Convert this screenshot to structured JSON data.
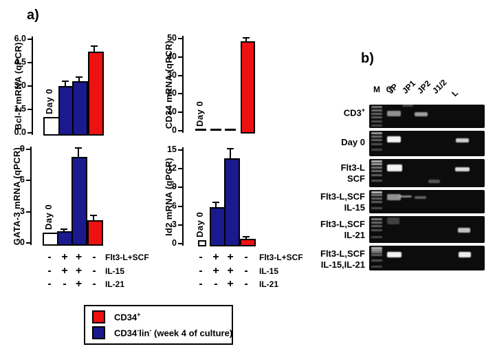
{
  "panel_a_label": "a)",
  "panel_b_label": "b)",
  "colors": {
    "red": "#ee1111",
    "blue": "#1a1a8e",
    "open": "#ffffff",
    "axis": "#000000",
    "gel_background": "#0c0c0c"
  },
  "chart_data": [
    {
      "type": "bar",
      "ylabel": "Bcl-2 mRNA (qPCR)",
      "ylim": [
        0,
        6.0
      ],
      "yticks": [
        "0.0",
        "1.5",
        "3.0",
        "4.5",
        "6.0"
      ],
      "annotation": "Day 0",
      "bars": [
        {
          "style": "open",
          "value": 1.0,
          "error": 0
        },
        {
          "style": "blue",
          "value": 3.0,
          "error": 0.25
        },
        {
          "style": "blue",
          "value": 3.3,
          "error": 0.25
        },
        {
          "style": "red",
          "value": 5.2,
          "error": 0.3
        }
      ]
    },
    {
      "type": "bar",
      "ylabel": "CD34 mRNA (qPCR)",
      "ylim": [
        0,
        50
      ],
      "yticks": [
        "0",
        "10",
        "20",
        "30",
        "40",
        "50"
      ],
      "annotation": "Day 0",
      "bars": [
        {
          "style": "dash",
          "value": 0,
          "error": 0
        },
        {
          "style": "dash",
          "value": 0,
          "error": 0
        },
        {
          "style": "dash",
          "value": 0,
          "error": 0
        },
        {
          "style": "red",
          "value": 48.5,
          "error": 1.5
        }
      ]
    },
    {
      "type": "bar",
      "ylabel": "GATA-3 mRNA (qPCR)",
      "ylim": [
        0,
        9
      ],
      "yticks": [
        "0",
        "3",
        "6",
        "9"
      ],
      "annotation": "Day 0",
      "bars": [
        {
          "style": "open",
          "value": 1.0,
          "error": 0
        },
        {
          "style": "blue",
          "value": 1.15,
          "error": 0.1
        },
        {
          "style": "blue",
          "value": 8.3,
          "error": 0.75
        },
        {
          "style": "red",
          "value": 2.2,
          "error": 0.35
        }
      ]
    },
    {
      "type": "bar",
      "ylabel": "Id2 mRNA (qPCR)",
      "ylim": [
        0,
        15
      ],
      "yticks": [
        "0",
        "3",
        "6",
        "9",
        "12",
        "15"
      ],
      "annotation": "Day 0",
      "bars": [
        {
          "style": "open",
          "value": 0.6,
          "error": 0
        },
        {
          "style": "blue",
          "value": 5.8,
          "error": 0.7
        },
        {
          "style": "blue",
          "value": 13.7,
          "error": 1.4
        },
        {
          "style": "red",
          "value": 0.75,
          "error": 0.2
        }
      ]
    }
  ],
  "condition_matrix": {
    "rows": [
      {
        "label": "Flt3-L+SCF",
        "signs": [
          "-",
          "+",
          "+",
          "-"
        ]
      },
      {
        "label": "IL-15",
        "signs": [
          "-",
          "+",
          "+",
          "-"
        ]
      },
      {
        "label": "IL-21",
        "signs": [
          "-",
          "-",
          "+",
          "-"
        ]
      }
    ]
  },
  "legend": {
    "items": [
      {
        "color": "#ee1111",
        "label_parts": [
          {
            "t": "CD34"
          },
          {
            "t": "+",
            "sup": true
          }
        ]
      },
      {
        "color": "#1a1a8e",
        "label_parts": [
          {
            "t": "CD34"
          },
          {
            "t": "-",
            "sup": true
          },
          {
            "t": "lin"
          },
          {
            "t": "-",
            "sup": true
          },
          {
            "t": " (week 4 of culture)"
          }
        ]
      }
    ]
  },
  "gel": {
    "lane_labels": [
      {
        "t": "M",
        "rot": false
      },
      {
        "t": "C",
        "rot": false
      },
      {
        "t": "JP",
        "rot": true
      },
      {
        "t": "JP1",
        "rot": true
      },
      {
        "t": "JP2",
        "rot": true
      },
      {
        "t": "J1/2",
        "rot": true
      },
      {
        "t": "L",
        "rot": true
      }
    ],
    "rows": [
      {
        "label_lines": [
          [
            {
              "t": "CD3"
            },
            {
              "t": "+",
              "sup": true
            }
          ]
        ],
        "ladder": [
          [
            2,
            0.5
          ],
          [
            7,
            0.45
          ],
          [
            12,
            0.42
          ],
          [
            17,
            0.38
          ],
          [
            23,
            0.32
          ],
          [
            29,
            0.28
          ]
        ],
        "bands": [
          [
            26,
            9,
            20,
            8,
            0.55
          ],
          [
            48,
            0,
            16,
            3,
            0.25
          ],
          [
            66,
            11,
            19,
            6,
            0.6
          ]
        ]
      },
      {
        "label_lines": [
          [
            {
              "t": "Day 0"
            }
          ]
        ],
        "ladder": [
          [
            2,
            0.7
          ],
          [
            7,
            0.45
          ],
          [
            12,
            0.4
          ],
          [
            18,
            0.32
          ],
          [
            26,
            0.28
          ]
        ],
        "bands": [
          [
            26,
            8,
            20,
            9,
            0.95
          ],
          [
            126,
            11,
            19,
            6,
            0.8
          ]
        ]
      },
      {
        "label_lines": [
          [
            {
              "t": "Flt3-L"
            }
          ],
          [
            {
              "t": "SCF"
            }
          ]
        ],
        "ladder": [
          [
            2,
            0.8
          ],
          [
            6,
            0.7
          ],
          [
            11,
            0.5
          ],
          [
            16,
            0.45
          ],
          [
            22,
            0.4
          ],
          [
            30,
            0.33
          ]
        ],
        "bands": [
          [
            26,
            8,
            22,
            10,
            0.95
          ],
          [
            125,
            12,
            21,
            6,
            0.85
          ],
          [
            86,
            30,
            17,
            5,
            0.3
          ]
        ]
      },
      {
        "label_lines": [
          [
            {
              "t": "Flt3-L,SCF"
            }
          ],
          [
            {
              "t": "IL-15"
            }
          ]
        ],
        "ladder": [
          [
            2,
            0.85
          ],
          [
            6,
            0.5
          ],
          [
            11,
            0.42
          ],
          [
            16,
            0.38
          ],
          [
            25,
            0.3
          ]
        ],
        "bands": [
          [
            26,
            6,
            20,
            9,
            0.55
          ],
          [
            44,
            8,
            18,
            3,
            0.5
          ],
          [
            66,
            9,
            17,
            4,
            0.35
          ]
        ]
      },
      {
        "label_lines": [
          [
            {
              "t": "Flt3-L,SCF"
            }
          ],
          [
            {
              "t": "IL-21"
            }
          ]
        ],
        "ladder": [
          [
            3,
            0.55
          ],
          [
            8,
            0.45
          ],
          [
            13,
            0.4
          ],
          [
            19,
            0.33
          ],
          [
            29,
            0.28
          ]
        ],
        "bands": [
          [
            26,
            2,
            18,
            10,
            0.22
          ],
          [
            129,
            17,
            18,
            7,
            0.75
          ]
        ]
      },
      {
        "label_lines": [
          [
            {
              "t": "Flt3-L,SCF"
            }
          ],
          [
            {
              "t": "IL-15,IL-21"
            }
          ]
        ],
        "ladder": [
          [
            2,
            0.8
          ],
          [
            5,
            0.65
          ],
          [
            8,
            0.5
          ],
          [
            12,
            0.4
          ],
          [
            20,
            0.33
          ],
          [
            29,
            0.28
          ]
        ],
        "bands": [
          [
            26,
            9,
            21,
            8,
            0.95
          ],
          [
            130,
            9,
            18,
            8,
            0.92
          ]
        ]
      }
    ]
  }
}
